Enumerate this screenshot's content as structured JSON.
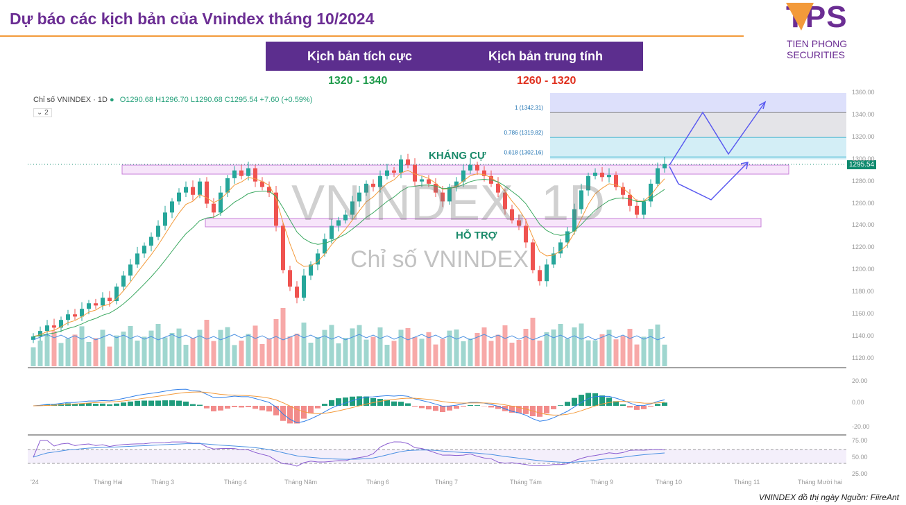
{
  "header": {
    "title": "Dự báo các kịch bản của Vnindex tháng 10/2024"
  },
  "logo": {
    "text": "TPS",
    "subtitle": "TIEN PHONG SECURITIES"
  },
  "scenarios": [
    {
      "label": "Kịch bản tích cực",
      "range": "1320 - 1340",
      "color": "#1e9a4a"
    },
    {
      "label": "Kịch bản trung tính",
      "range": "1260 - 1320",
      "color": "#e0301e"
    }
  ],
  "legend": {
    "symbol": "Chỉ số VNINDEX · 1D",
    "ohlc": "O1290.68 H1296.70 L1290.68 C1295.54 +7.60 (+0.59%)",
    "collapse": "⌄ 2"
  },
  "watermark": {
    "main": "VNINDEX, 1D",
    "sub": "Chỉ số VNINDEX"
  },
  "annotations": {
    "resistance": "KHÁNG CỰ",
    "support": "HỖ TRỢ"
  },
  "source": "VNINDEX đồ thị ngày Nguồn: FiireAnt",
  "chart_data": {
    "type": "candlestick",
    "last_price": "1295.54",
    "ylim": [
      1120,
      1360
    ],
    "y_ticks": [
      "1360.00",
      "1340.00",
      "1320.00",
      "1300.00",
      "1280.00",
      "1260.00",
      "1240.00",
      "1220.00",
      "1200.00",
      "1180.00",
      "1160.00",
      "1140.00",
      "1120.00"
    ],
    "x_ticks": [
      "'24",
      "Tháng Hai",
      "Tháng 3",
      "Tháng 4",
      "Tháng Năm",
      "Tháng 6",
      "Tháng 7",
      "Tháng Tám",
      "Tháng 9",
      "Tháng 10",
      "Tháng 11",
      "Tháng Mười hai"
    ],
    "closes": [
      1140,
      1145,
      1150,
      1148,
      1155,
      1160,
      1158,
      1165,
      1170,
      1168,
      1175,
      1172,
      1185,
      1195,
      1205,
      1215,
      1222,
      1230,
      1240,
      1252,
      1262,
      1270,
      1275,
      1268,
      1280,
      1260,
      1252,
      1270,
      1283,
      1290,
      1285,
      1292,
      1280,
      1275,
      1270,
      1240,
      1200,
      1185,
      1175,
      1195,
      1205,
      1215,
      1228,
      1240,
      1245,
      1250,
      1262,
      1270,
      1278,
      1275,
      1285,
      1290,
      1288,
      1300,
      1295,
      1280,
      1282,
      1278,
      1270,
      1262,
      1275,
      1280,
      1290,
      1295,
      1290,
      1285,
      1278,
      1270,
      1255,
      1245,
      1240,
      1225,
      1200,
      1190,
      1205,
      1215,
      1225,
      1235,
      1255,
      1272,
      1285,
      1288,
      1284,
      1286,
      1275,
      1268,
      1258,
      1250,
      1262,
      1278,
      1292,
      1296
    ],
    "fibonacci": [
      {
        "label": "1 (1342.31)",
        "value": 1342.31
      },
      {
        "label": "0.786 (1319.82)",
        "value": 1319.82
      },
      {
        "label": "0.618 (1302.16)",
        "value": 1302.16
      }
    ],
    "resistance_zone": [
      1290,
      1298
    ],
    "support_zone": [
      1243,
      1250
    ],
    "macd_ticks": [
      "20.00",
      "0.00",
      "-20.00"
    ],
    "rsi_ticks": [
      "75.00",
      "50.00",
      "25.00"
    ],
    "colors": {
      "up": "#26a69a",
      "down": "#ef5350",
      "accent": "#6b2d93",
      "projection": "#5a5af0"
    }
  }
}
